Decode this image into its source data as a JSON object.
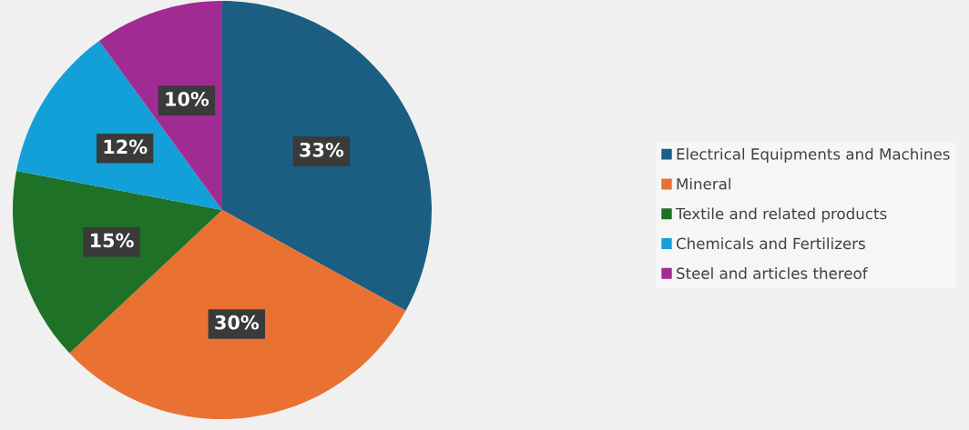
{
  "chart_data": {
    "type": "pie",
    "categories": [
      "Electrical Equipments and Machines",
      "Mineral",
      "Textile and related products",
      "Chemicals and Fertilizers",
      "Steel and articles thereof"
    ],
    "values": [
      33,
      30,
      15,
      12,
      10
    ],
    "colors": [
      "#1b5e82",
      "#e97132",
      "#1e7127",
      "#13a0d8",
      "#a02b93"
    ],
    "value_labels": [
      "33%",
      "30%",
      "15%",
      "12%",
      "10%"
    ],
    "legend": "right"
  }
}
